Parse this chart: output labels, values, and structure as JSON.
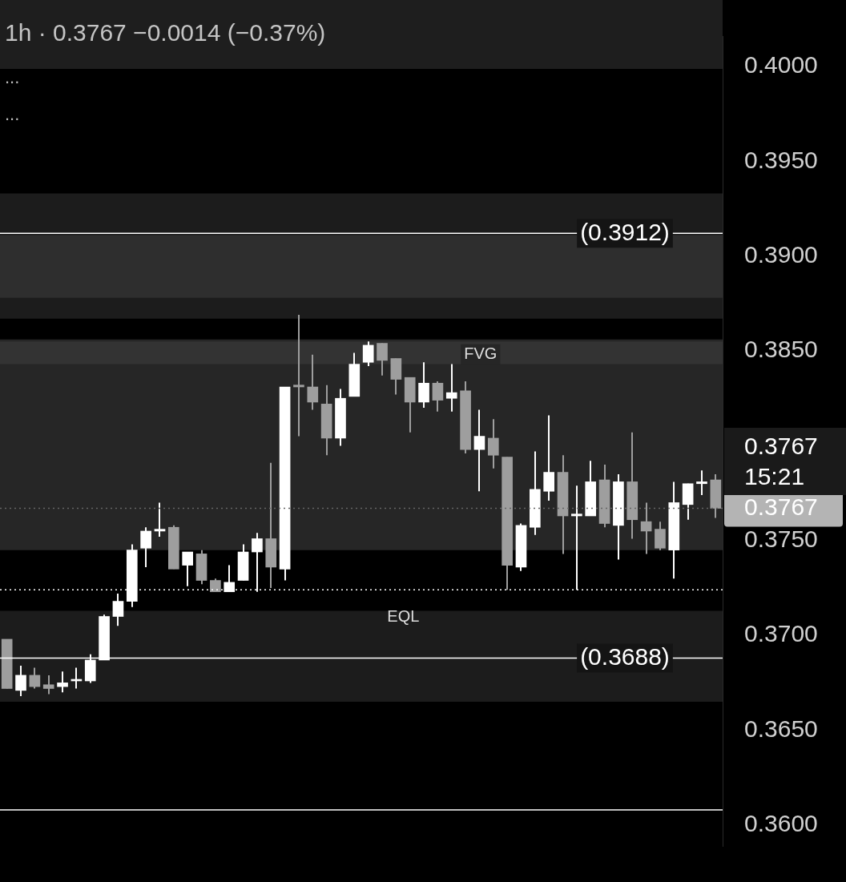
{
  "chart_data": {
    "type": "candlestick",
    "title": "1h · 0.3767  −0.0014 (−0.37%)",
    "categories": [
      null,
      null,
      null,
      null,
      null,
      null,
      null,
      null,
      null,
      null,
      null,
      null,
      null,
      null,
      null,
      null,
      null,
      null,
      null,
      null,
      null,
      null,
      null,
      null,
      null,
      null,
      null,
      null,
      null,
      null,
      null,
      null,
      null,
      null,
      null,
      null,
      null,
      null,
      null,
      null,
      null,
      null,
      null,
      null,
      null,
      null,
      null,
      null,
      null,
      null,
      null,
      null
    ],
    "ohlc": [
      [
        0.3698,
        0.3698,
        0.3672,
        0.3672
      ],
      [
        0.3671,
        0.3684,
        0.3668,
        0.3679
      ],
      [
        0.3679,
        0.3683,
        0.3672,
        0.3673
      ],
      [
        0.3674,
        0.3679,
        0.3669,
        0.3672
      ],
      [
        0.3673,
        0.3681,
        0.367,
        0.3675
      ],
      [
        0.3676,
        0.3683,
        0.3672,
        0.3676
      ],
      [
        0.3676,
        0.369,
        0.3675,
        0.3687
      ],
      [
        0.3687,
        0.3711,
        0.3687,
        0.371
      ],
      [
        0.371,
        0.3722,
        0.3705,
        0.3718
      ],
      [
        0.3718,
        0.3748,
        0.3715,
        0.3745
      ],
      [
        0.3746,
        0.3757,
        0.3736,
        0.3755
      ],
      [
        0.3755,
        0.377,
        0.3752,
        0.3756
      ],
      [
        0.3757,
        0.3758,
        0.3735,
        0.3735
      ],
      [
        0.3737,
        0.3744,
        0.3726,
        0.3744
      ],
      [
        0.3743,
        0.3745,
        0.3727,
        0.3729
      ],
      [
        0.3729,
        0.373,
        0.3723,
        0.3723
      ],
      [
        0.3723,
        0.3737,
        0.3723,
        0.3728
      ],
      [
        0.3729,
        0.3748,
        0.3729,
        0.3744
      ],
      [
        0.3744,
        0.3754,
        0.3723,
        0.3751
      ],
      [
        0.3751,
        0.3791,
        0.3725,
        0.3736
      ],
      [
        0.3735,
        0.3831,
        0.3729,
        0.3831
      ],
      [
        0.3832,
        0.3869,
        0.3805,
        0.3831
      ],
      [
        0.3831,
        0.3848,
        0.3819,
        0.3823
      ],
      [
        0.3822,
        0.3832,
        0.3795,
        0.3804
      ],
      [
        0.3804,
        0.383,
        0.38,
        0.3825
      ],
      [
        0.3826,
        0.3849,
        0.3826,
        0.3843
      ],
      [
        0.3844,
        0.3855,
        0.3842,
        0.3853
      ],
      [
        0.3854,
        0.3854,
        0.3837,
        0.3845
      ],
      [
        0.3846,
        0.3846,
        0.3827,
        0.3835
      ],
      [
        0.3836,
        0.3836,
        0.3807,
        0.3823
      ],
      [
        0.3823,
        0.3844,
        0.382,
        0.3833
      ],
      [
        0.3833,
        0.3834,
        0.3818,
        0.3824
      ],
      [
        0.3825,
        0.3843,
        0.3818,
        0.3828
      ],
      [
        0.3829,
        0.3834,
        0.3796,
        0.3798
      ],
      [
        0.3798,
        0.3819,
        0.3776,
        0.3805
      ],
      [
        0.3804,
        0.3814,
        0.3788,
        0.3795
      ],
      [
        0.3794,
        0.3794,
        0.3724,
        0.3737
      ],
      [
        0.3736,
        0.3759,
        0.3734,
        0.3758
      ],
      [
        0.3757,
        0.3797,
        0.3753,
        0.3777
      ],
      [
        0.3776,
        0.3816,
        0.3771,
        0.3786
      ],
      [
        0.3786,
        0.3795,
        0.3743,
        0.3763
      ],
      [
        0.3763,
        0.3779,
        0.3724,
        0.3764
      ],
      [
        0.3763,
        0.3792,
        0.3763,
        0.3781
      ],
      [
        0.3782,
        0.379,
        0.3757,
        0.3759
      ],
      [
        0.3758,
        0.3785,
        0.374,
        0.3781
      ],
      [
        0.3781,
        0.3807,
        0.3751,
        0.3761
      ],
      [
        0.376,
        0.377,
        0.3743,
        0.3755
      ],
      [
        0.3756,
        0.376,
        0.3745,
        0.3746
      ],
      [
        0.3745,
        0.3781,
        0.373,
        0.377
      ],
      [
        0.3769,
        0.378,
        0.3761,
        0.378
      ],
      [
        0.378,
        0.3787,
        0.3774,
        0.3781
      ],
      [
        0.3782,
        0.3785,
        0.3762,
        0.3767
      ]
    ],
    "colors": [
      "#9e9e9e",
      "#ffffff",
      "#9e9e9e",
      "#9e9e9e",
      "#ffffff",
      "#ffffff",
      "#ffffff",
      "#ffffff",
      "#ffffff",
      "#ffffff",
      "#ffffff",
      "#ffffff",
      "#9e9e9e",
      "#ffffff",
      "#9e9e9e",
      "#9e9e9e",
      "#ffffff",
      "#ffffff",
      "#ffffff",
      "#9e9e9e",
      "#ffffff",
      "#9e9e9e",
      "#9e9e9e",
      "#9e9e9e",
      "#ffffff",
      "#ffffff",
      "#ffffff",
      "#9e9e9e",
      "#9e9e9e",
      "#9e9e9e",
      "#ffffff",
      "#9e9e9e",
      "#ffffff",
      "#9e9e9e",
      "#ffffff",
      "#9e9e9e",
      "#9e9e9e",
      "#ffffff",
      "#ffffff",
      "#ffffff",
      "#9e9e9e",
      "#ffffff",
      "#ffffff",
      "#9e9e9e",
      "#ffffff",
      "#9e9e9e",
      "#9e9e9e",
      "#9e9e9e",
      "#ffffff",
      "#ffffff",
      "#ffffff",
      "#9e9e9e"
    ],
    "ylim": [
      0.3589,
      0.4016
    ],
    "yticks": [
      {
        "value": 0.36,
        "label": "0.3600"
      },
      {
        "value": 0.365,
        "label": "0.3650"
      },
      {
        "value": 0.37,
        "label": "0.3700"
      },
      {
        "value": 0.375,
        "label": "0.3750"
      },
      {
        "value": 0.385,
        "label": "0.3850"
      },
      {
        "value": 0.39,
        "label": "0.3900"
      },
      {
        "value": 0.395,
        "label": "0.3950"
      },
      {
        "value": 0.4,
        "label": "0.4000"
      }
    ],
    "tick_labels": "y",
    "bands": [
      {
        "axis": "y",
        "from": 0.3867,
        "to": 0.3933,
        "color": "#1c1c1c"
      },
      {
        "axis": "y",
        "from": 0.3878,
        "to": 0.3911,
        "color": "#2e2e2e"
      },
      {
        "axis": "y",
        "from": 0.3745,
        "to": 0.3856,
        "color": "#262626",
        "label": "FVG"
      },
      {
        "axis": "y",
        "from": 0.3843,
        "to": 0.3855,
        "color": "#333333"
      },
      {
        "axis": "y",
        "from": 0.3665,
        "to": 0.3713,
        "color": "#1c1c1c"
      }
    ],
    "ref_lines": [
      {
        "axis": "y",
        "value": 0.3912,
        "label": "(0.3912)",
        "color": "#ffffff"
      },
      {
        "axis": "y",
        "value": 0.3688,
        "label": "(0.3688)",
        "color": "#ffffff"
      },
      {
        "axis": "y",
        "value": 0.3767,
        "label": "0.3767",
        "color": "#666666",
        "line_style": "dotted"
      },
      {
        "axis": "y",
        "value": 0.3724,
        "color": "#ffffff",
        "line_style": "dotted"
      },
      {
        "axis": "y",
        "value": 0.3608,
        "color": "#ffffff"
      }
    ],
    "annotations": [
      "...",
      "...",
      "0.3767",
      "15:21",
      {
        "text": "EQL",
        "y": 0.3724
      }
    ]
  }
}
